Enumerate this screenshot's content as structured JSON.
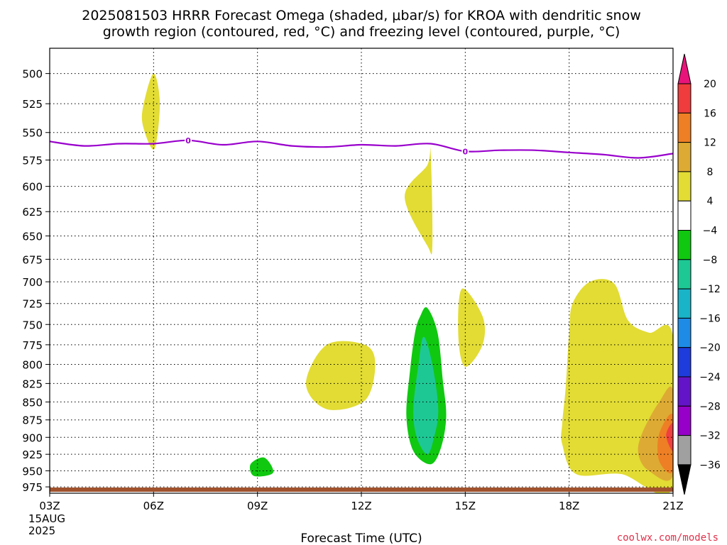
{
  "title_line1": "2025081503 HRRR Forecast Omega (shaded, μbar/s) for KROA with dendritic snow",
  "title_line2": "growth region (contoured, red, °C) and freezing level (contoured, purple, °C)",
  "xlabel": "Forecast Time (UTC)",
  "credit": "coolwx.com/models",
  "x_date_line1": "15AUG",
  "x_date_line2": "2025",
  "chart_data": {
    "type": "contour",
    "x_ticks": [
      "03Z",
      "06Z",
      "09Z",
      "12Z",
      "15Z",
      "18Z",
      "21Z"
    ],
    "x_hours": [
      3,
      6,
      9,
      12,
      15,
      18,
      21
    ],
    "xlim": [
      3,
      21
    ],
    "y_ticks": [
      500,
      525,
      550,
      575,
      600,
      625,
      650,
      675,
      700,
      725,
      750,
      775,
      800,
      825,
      850,
      875,
      900,
      925,
      950,
      975
    ],
    "ylim": [
      480,
      985
    ],
    "y_scale": "log",
    "grid": true,
    "freezing_level": {
      "label": "0",
      "color": "#9900cc",
      "points": [
        [
          3,
          558
        ],
        [
          4,
          562
        ],
        [
          5,
          560
        ],
        [
          6,
          560
        ],
        [
          7,
          557
        ],
        [
          8,
          561
        ],
        [
          9,
          558
        ],
        [
          10,
          562
        ],
        [
          11,
          563
        ],
        [
          12,
          561
        ],
        [
          13,
          562
        ],
        [
          14,
          560
        ],
        [
          15,
          567
        ],
        [
          16,
          566
        ],
        [
          17,
          566
        ],
        [
          18,
          568
        ],
        [
          19,
          570
        ],
        [
          20,
          573
        ],
        [
          21,
          569
        ]
      ],
      "label_hours": [
        7,
        15
      ]
    },
    "omega_regions": [
      {
        "level": "4 to 8",
        "color": "#e2dc34",
        "points": [
          [
            6.0,
            500
          ],
          [
            6.18,
            525
          ],
          [
            6.02,
            565
          ],
          [
            5.7,
            545
          ],
          [
            5.7,
            527
          ]
        ]
      },
      {
        "level": "4 to 8",
        "color": "#e2dc34",
        "points": [
          [
            14.0,
            567
          ],
          [
            14.05,
            660
          ],
          [
            13.9,
            660
          ],
          [
            13.25,
            610
          ],
          [
            13.9,
            580
          ]
        ]
      },
      {
        "level": "4 to 8",
        "color": "#e2dc34",
        "points": [
          [
            14.9,
            708
          ],
          [
            15.5,
            740
          ],
          [
            15.5,
            775
          ],
          [
            15.0,
            803
          ],
          [
            14.8,
            765
          ]
        ]
      },
      {
        "level": "4 to 8",
        "color": "#e2dc34",
        "points": [
          [
            10.4,
            825
          ],
          [
            11.0,
            775
          ],
          [
            12.1,
            775
          ],
          [
            12.4,
            800
          ],
          [
            12.1,
            848
          ],
          [
            11.0,
            860
          ]
        ]
      },
      {
        "level": "4 to 8",
        "color": "#e2dc34",
        "points": [
          [
            18.1,
            725
          ],
          [
            18.6,
            700
          ],
          [
            19.3,
            702
          ],
          [
            19.7,
            745
          ],
          [
            20.3,
            760
          ],
          [
            21.0,
            765
          ],
          [
            21.0,
            975
          ],
          [
            19.5,
            955
          ],
          [
            18.2,
            955
          ],
          [
            17.8,
            910
          ],
          [
            17.8,
            880
          ],
          [
            17.9,
            830
          ],
          [
            18.0,
            760
          ]
        ]
      },
      {
        "level": "8 to 12",
        "color": "#ddaa33",
        "points": [
          [
            21.0,
            835
          ],
          [
            20.6,
            850
          ],
          [
            20.1,
            895
          ],
          [
            20.0,
            925
          ],
          [
            20.3,
            950
          ],
          [
            21.0,
            957
          ]
        ]
      },
      {
        "level": "12 to 16",
        "color": "#ee7f24",
        "points": [
          [
            21.0,
            868
          ],
          [
            20.6,
            895
          ],
          [
            20.6,
            935
          ],
          [
            21.0,
            950
          ]
        ]
      },
      {
        "level": "16 to 20",
        "color": "#f04040",
        "points": [
          [
            21.0,
            880
          ],
          [
            20.8,
            897
          ],
          [
            21.0,
            920
          ]
        ]
      },
      {
        "level": "-8 to -4",
        "color": "#10c810",
        "points": [
          [
            13.7,
            740
          ],
          [
            13.9,
            730
          ],
          [
            14.2,
            760
          ],
          [
            14.35,
            820
          ],
          [
            14.45,
            870
          ],
          [
            14.3,
            915
          ],
          [
            14.0,
            940
          ],
          [
            13.5,
            920
          ],
          [
            13.3,
            870
          ],
          [
            13.4,
            810
          ],
          [
            13.55,
            760
          ]
        ]
      },
      {
        "level": "-12 to -8",
        "color": "#1ec895",
        "points": [
          [
            13.8,
            765
          ],
          [
            14.05,
            800
          ],
          [
            14.22,
            860
          ],
          [
            14.1,
            900
          ],
          [
            13.9,
            925
          ],
          [
            13.6,
            900
          ],
          [
            13.5,
            860
          ],
          [
            13.65,
            800
          ]
        ]
      },
      {
        "level": "-8 to -4",
        "color": "#10c810",
        "points": [
          [
            8.8,
            940
          ],
          [
            9.2,
            930
          ],
          [
            9.45,
            953
          ],
          [
            8.9,
            958
          ]
        ]
      }
    ],
    "colorbar": {
      "labels": [
        "20",
        "16",
        "12",
        "8",
        "4",
        "−4",
        "−8",
        "−12",
        "−16",
        "−20",
        "−24",
        "−28",
        "−32",
        "−36"
      ],
      "segments": [
        "#f03c3c",
        "#ee7f24",
        "#ddaa33",
        "#e2dc34",
        "#ffffff",
        "#10c810",
        "#1ec895",
        "#1ab4c8",
        "#1e8ce6",
        "#1e3cdc",
        "#6414c8",
        "#9600c8",
        "#a0a0a0"
      ],
      "top_arrow_color": "#e8147a",
      "bottom_arrow_color": "#000000"
    },
    "ground_color": "#a0522d"
  }
}
